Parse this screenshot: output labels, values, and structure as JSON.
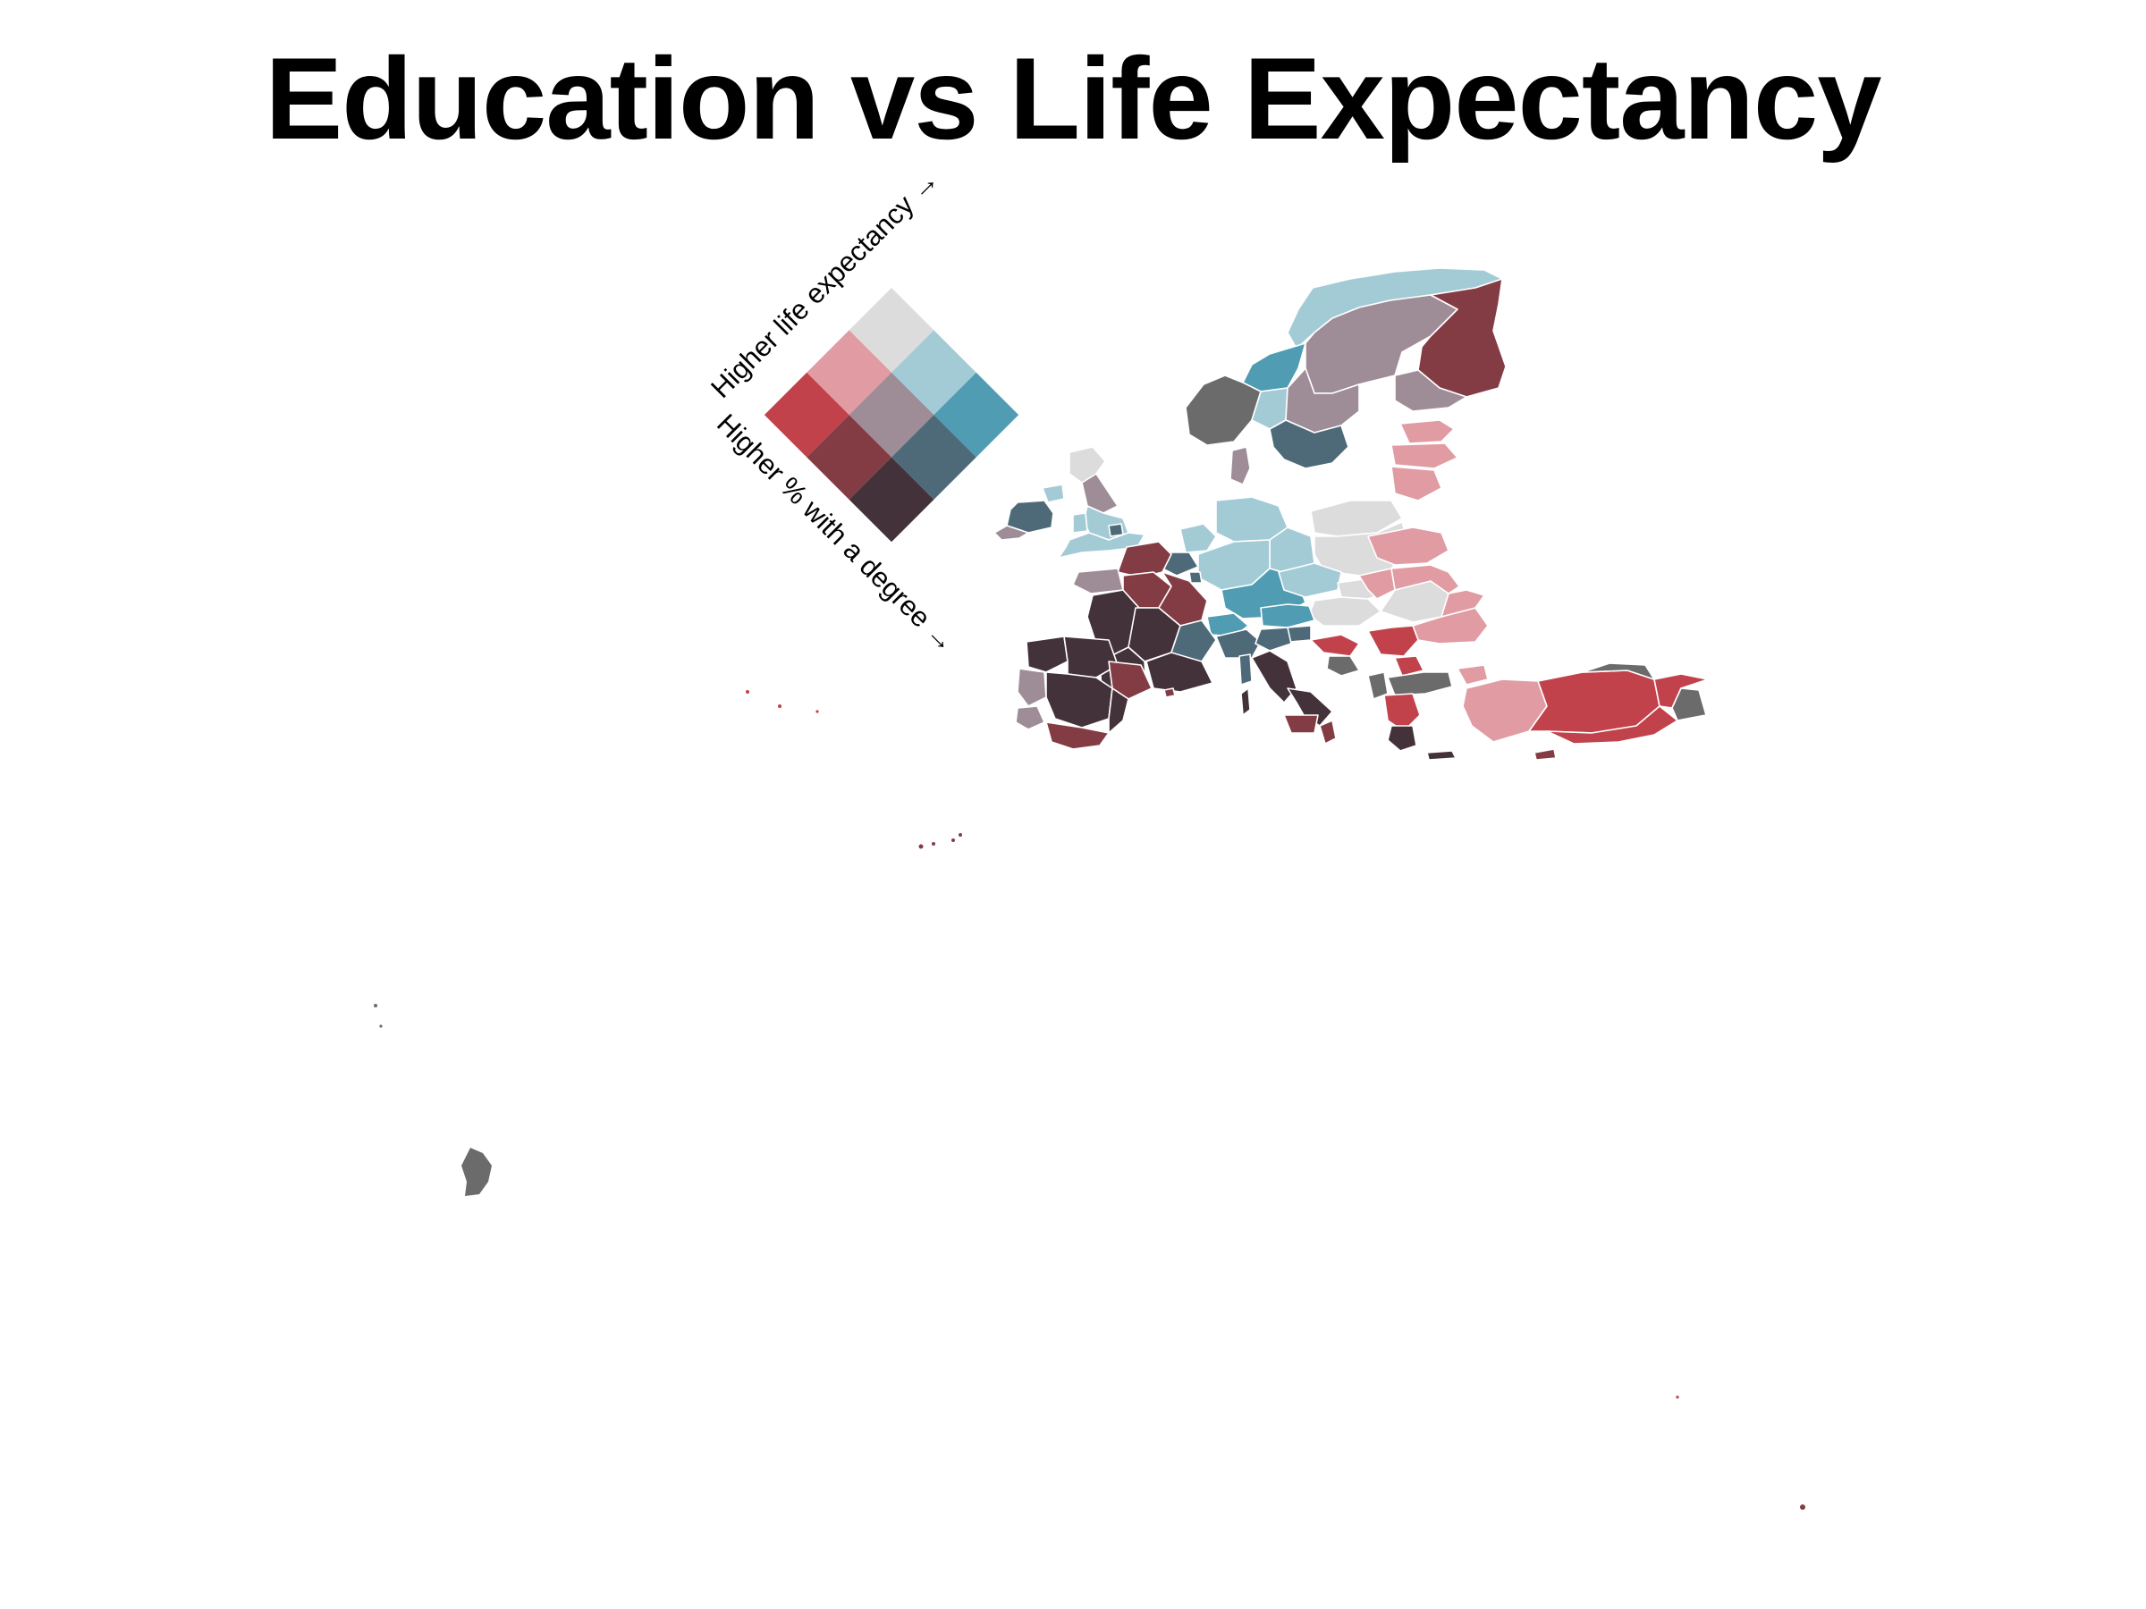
{
  "title": "Education vs Life Expectancy",
  "legend": {
    "life_axis_label": "Higher life expectancy →",
    "degree_axis_label": "Higher % with a degree →",
    "grid": [
      [
        "#dcdcdc",
        "#a3cbd6",
        "#4f9cb3"
      ],
      [
        "#e09ca2",
        "#9e8c97",
        "#4e6a79"
      ],
      [
        "#c1424b",
        "#843c44",
        "#44323a"
      ]
    ]
  },
  "colors": {
    "low_edu_low_life": "#dcdcdc",
    "low_edu_mid_life": "#a3cbd6",
    "low_edu_high_life": "#4f9cb3",
    "mid_edu_low_life": "#e09ca2",
    "mid_edu_mid_life": "#9e8c97",
    "mid_edu_high_life": "#4e6a79",
    "high_edu_low_life": "#c1424b",
    "high_edu_mid_life": "#843c44",
    "high_edu_high_life": "#44323a",
    "no_data": "#6b6b6b"
  }
}
